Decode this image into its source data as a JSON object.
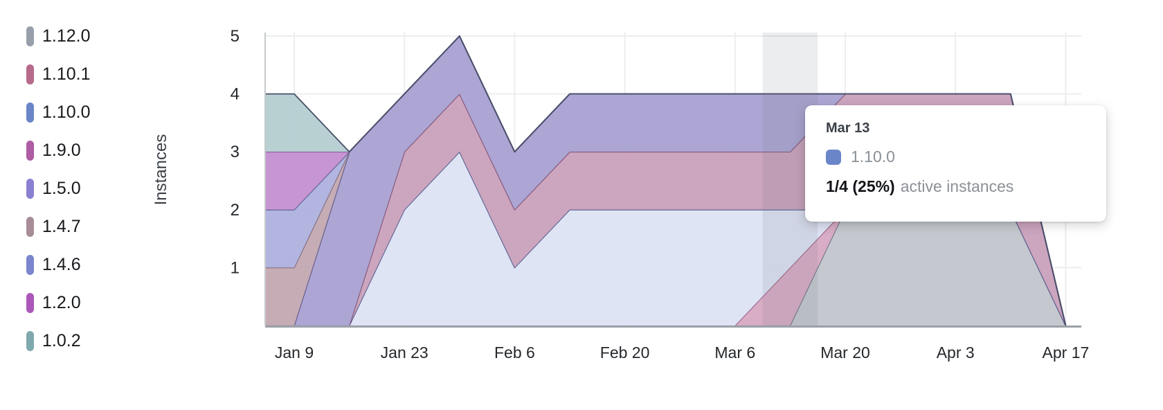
{
  "legend": {
    "items": [
      {
        "label": "1.12.0",
        "color": "#97a0aa"
      },
      {
        "label": "1.10.1",
        "color": "#b76a8b"
      },
      {
        "label": "1.10.0",
        "color": "#6a86c8"
      },
      {
        "label": "1.9.0",
        "color": "#ae5ca3"
      },
      {
        "label": "1.5.0",
        "color": "#8a80d2"
      },
      {
        "label": "1.4.7",
        "color": "#a88d99"
      },
      {
        "label": "1.4.6",
        "color": "#7b86cf"
      },
      {
        "label": "1.2.0",
        "color": "#ab57b9"
      },
      {
        "label": "1.0.2",
        "color": "#7fa9ad"
      }
    ]
  },
  "tooltip": {
    "date": "Mar 13",
    "series": "1.10.0",
    "swatch_color": "#6a86c8",
    "value": "1/4 (25%)",
    "value_suffix": "active instances",
    "highlight_week": "Mar 13"
  },
  "colors": {
    "background": "#ffffff",
    "grid": "#ebedef",
    "axis_bottom": "#9aa1a8",
    "axis_left": "#c6cacd",
    "tick_text": "#24272b",
    "axis_title_text": "#3a3f45",
    "highlight_band": "rgba(108,114,124,0.13)"
  },
  "chart_data": {
    "type": "area",
    "stacked": true,
    "title": "",
    "xlabel": "",
    "ylabel": "Instances",
    "ylim": [
      0,
      5
    ],
    "y_ticks": [
      1,
      2,
      3,
      4,
      5
    ],
    "grid": true,
    "legend_position": "left",
    "x_weekly": [
      "Jan 9",
      "Jan 16",
      "Jan 23",
      "Jan 30",
      "Feb 6",
      "Feb 13",
      "Feb 20",
      "Feb 27",
      "Mar 6",
      "Mar 13",
      "Mar 20",
      "Mar 27",
      "Apr 3",
      "Apr 10",
      "Apr 17"
    ],
    "x_tick_labels": [
      "Jan 9",
      "Jan 23",
      "Feb 6",
      "Feb 20",
      "Mar 6",
      "Mar 20",
      "Apr 3",
      "Apr 17"
    ],
    "x_tick_indices": [
      0,
      2,
      4,
      6,
      8,
      10,
      12,
      14
    ],
    "stack_order": "series listed bottom-to-top",
    "series": [
      {
        "name": "1.12.0",
        "fill": "#c2c6cc",
        "stroke": "#646e7e",
        "values": [
          0,
          0,
          0,
          0,
          0,
          0,
          0,
          0,
          0,
          0,
          2,
          2,
          2,
          2,
          0
        ]
      },
      {
        "name": "1.9.0",
        "fill": "#d6a9c2",
        "stroke": "#94547b",
        "values": [
          0,
          0,
          0,
          0,
          0,
          0,
          0,
          0,
          0,
          1,
          0,
          0,
          0,
          0,
          0
        ]
      },
      {
        "name": "1.10.0",
        "fill": "#dde3f4",
        "stroke": "#49598b",
        "values": [
          0,
          0,
          2,
          3,
          1,
          2,
          2,
          2,
          2,
          1,
          0,
          0,
          0,
          0,
          0
        ]
      },
      {
        "name": "1.10.1",
        "fill": "#c9a0bb",
        "stroke": "#7e4a6b",
        "values": [
          0,
          0,
          1,
          1,
          1,
          1,
          1,
          1,
          1,
          1,
          2,
          2,
          2,
          2,
          0
        ]
      },
      {
        "name": "1.5.0",
        "fill": "#a9a1d2",
        "stroke": "#534d80",
        "values": [
          0,
          3,
          1,
          1,
          1,
          1,
          1,
          1,
          1,
          1,
          0,
          0,
          0,
          0,
          0
        ]
      },
      {
        "name": "1.4.7",
        "fill": "#c2a8b1",
        "stroke": "#7f6570",
        "values": [
          1,
          0,
          0,
          0,
          0,
          0,
          0,
          0,
          0,
          0,
          0,
          0,
          0,
          0,
          0
        ]
      },
      {
        "name": "1.4.6",
        "fill": "#adb1dd",
        "stroke": "#555a91",
        "values": [
          1,
          0,
          0,
          0,
          0,
          0,
          0,
          0,
          0,
          0,
          0,
          0,
          0,
          0,
          0
        ]
      },
      {
        "name": "1.2.0",
        "fill": "#c48fd0",
        "stroke": "#7e4b92",
        "values": [
          1,
          0,
          0,
          0,
          0,
          0,
          0,
          0,
          0,
          0,
          0,
          0,
          0,
          0,
          0
        ]
      },
      {
        "name": "1.0.2",
        "fill": "#b5cdd1",
        "stroke": "#475067",
        "values": [
          1,
          0,
          0,
          0,
          0,
          0,
          0,
          0,
          0,
          0,
          0,
          0,
          0,
          0,
          0
        ]
      }
    ]
  }
}
